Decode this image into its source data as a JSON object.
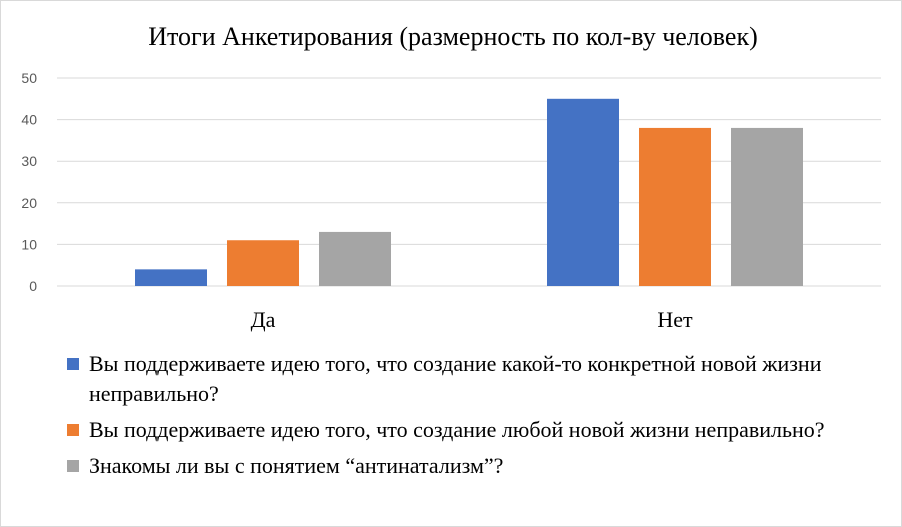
{
  "chart_data": {
    "type": "bar",
    "title": "Итоги Анкетирования (размерность по кол-ву человек)",
    "categories": [
      "Да",
      "Нет"
    ],
    "series": [
      {
        "name": "Вы поддерживаете идею того, что создание какой-то конкретной новой жизни неправильно?",
        "color": "#4472C4",
        "values": [
          4,
          45
        ]
      },
      {
        "name": "Вы поддерживаете идею того, что создание любой новой жизни неправильно?",
        "color": "#ED7D31",
        "values": [
          11,
          38
        ]
      },
      {
        "name": "Знакомы ли вы с понятием “антинатализм”?",
        "color": "#A5A5A5",
        "values": [
          13,
          38
        ]
      }
    ],
    "ylim": [
      0,
      50
    ],
    "yticks": [
      0,
      10,
      20,
      30,
      40,
      50
    ],
    "grid": true,
    "legend": "bottom"
  }
}
